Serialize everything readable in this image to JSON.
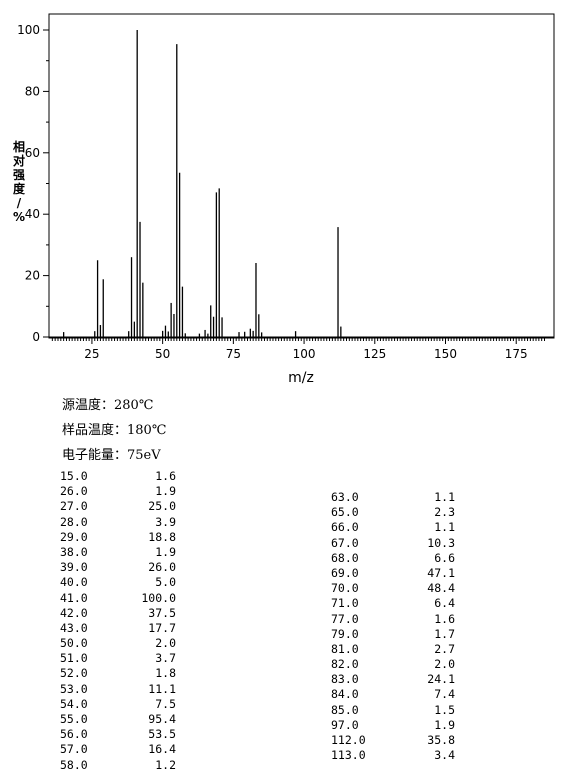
{
  "chart_data": {
    "type": "bar",
    "xlabel": "m/z",
    "ylabel": "相对强度/%",
    "xlim": [
      8,
      187
    ],
    "ylim": [
      0,
      105
    ],
    "x_ticks": [
      25,
      50,
      75,
      100,
      125,
      150,
      175
    ],
    "y_ticks": [
      0,
      20,
      40,
      60,
      80,
      100
    ],
    "x_tick_labels": [
      "25",
      "50",
      "75",
      "100",
      "125",
      "150",
      "175"
    ],
    "y_tick_labels": [
      "0",
      "20",
      "40",
      "60",
      "80",
      "100"
    ],
    "grid": false,
    "peaks": [
      {
        "x": 15.0,
        "y": 1.6
      },
      {
        "x": 26.0,
        "y": 1.9
      },
      {
        "x": 27.0,
        "y": 25.0
      },
      {
        "x": 28.0,
        "y": 3.9
      },
      {
        "x": 29.0,
        "y": 18.8
      },
      {
        "x": 38.0,
        "y": 1.9
      },
      {
        "x": 39.0,
        "y": 26.0
      },
      {
        "x": 40.0,
        "y": 5.0
      },
      {
        "x": 41.0,
        "y": 100.0
      },
      {
        "x": 42.0,
        "y": 37.5
      },
      {
        "x": 43.0,
        "y": 17.7
      },
      {
        "x": 50.0,
        "y": 2.0
      },
      {
        "x": 51.0,
        "y": 3.7
      },
      {
        "x": 52.0,
        "y": 1.8
      },
      {
        "x": 53.0,
        "y": 11.1
      },
      {
        "x": 54.0,
        "y": 7.5
      },
      {
        "x": 55.0,
        "y": 95.4
      },
      {
        "x": 56.0,
        "y": 53.5
      },
      {
        "x": 57.0,
        "y": 16.4
      },
      {
        "x": 58.0,
        "y": 1.2
      },
      {
        "x": 63.0,
        "y": 1.1
      },
      {
        "x": 65.0,
        "y": 2.3
      },
      {
        "x": 66.0,
        "y": 1.1
      },
      {
        "x": 67.0,
        "y": 10.3
      },
      {
        "x": 68.0,
        "y": 6.6
      },
      {
        "x": 69.0,
        "y": 47.1
      },
      {
        "x": 70.0,
        "y": 48.4
      },
      {
        "x": 71.0,
        "y": 6.4
      },
      {
        "x": 77.0,
        "y": 1.6
      },
      {
        "x": 79.0,
        "y": 1.7
      },
      {
        "x": 81.0,
        "y": 2.7
      },
      {
        "x": 82.0,
        "y": 2.0
      },
      {
        "x": 83.0,
        "y": 24.1
      },
      {
        "x": 84.0,
        "y": 7.4
      },
      {
        "x": 85.0,
        "y": 1.5
      },
      {
        "x": 97.0,
        "y": 1.9
      },
      {
        "x": 112.0,
        "y": 35.8
      },
      {
        "x": 113.0,
        "y": 3.4
      }
    ]
  },
  "conditions": [
    {
      "label": "源温度：",
      "value": "280℃"
    },
    {
      "label": "样品温度：",
      "value": "180℃"
    },
    {
      "label": "电子能量：",
      "value": "75eV"
    }
  ],
  "peak_table": {
    "column1": [
      {
        "mz": "15.0",
        "abundance": "1.6"
      },
      {
        "mz": "26.0",
        "abundance": "1.9"
      },
      {
        "mz": "27.0",
        "abundance": "25.0"
      },
      {
        "mz": "28.0",
        "abundance": "3.9"
      },
      {
        "mz": "29.0",
        "abundance": "18.8"
      },
      {
        "mz": "38.0",
        "abundance": "1.9"
      },
      {
        "mz": "39.0",
        "abundance": "26.0"
      },
      {
        "mz": "40.0",
        "abundance": "5.0"
      },
      {
        "mz": "41.0",
        "abundance": "100.0"
      },
      {
        "mz": "42.0",
        "abundance": "37.5"
      },
      {
        "mz": "43.0",
        "abundance": "17.7"
      },
      {
        "mz": "50.0",
        "abundance": "2.0"
      },
      {
        "mz": "51.0",
        "abundance": "3.7"
      },
      {
        "mz": "52.0",
        "abundance": "1.8"
      },
      {
        "mz": "53.0",
        "abundance": "11.1"
      },
      {
        "mz": "54.0",
        "abundance": "7.5"
      },
      {
        "mz": "55.0",
        "abundance": "95.4"
      },
      {
        "mz": "56.0",
        "abundance": "53.5"
      },
      {
        "mz": "57.0",
        "abundance": "16.4"
      },
      {
        "mz": "58.0",
        "abundance": "1.2"
      }
    ],
    "column2": [
      {
        "mz": "63.0",
        "abundance": "1.1"
      },
      {
        "mz": "65.0",
        "abundance": "2.3"
      },
      {
        "mz": "66.0",
        "abundance": "1.1"
      },
      {
        "mz": "67.0",
        "abundance": "10.3"
      },
      {
        "mz": "68.0",
        "abundance": "6.6"
      },
      {
        "mz": "69.0",
        "abundance": "47.1"
      },
      {
        "mz": "70.0",
        "abundance": "48.4"
      },
      {
        "mz": "71.0",
        "abundance": "6.4"
      },
      {
        "mz": "77.0",
        "abundance": "1.6"
      },
      {
        "mz": "79.0",
        "abundance": "1.7"
      },
      {
        "mz": "81.0",
        "abundance": "2.7"
      },
      {
        "mz": "82.0",
        "abundance": "2.0"
      },
      {
        "mz": "83.0",
        "abundance": "24.1"
      },
      {
        "mz": "84.0",
        "abundance": "7.4"
      },
      {
        "mz": "85.0",
        "abundance": "1.5"
      },
      {
        "mz": "97.0",
        "abundance": "1.9"
      },
      {
        "mz": "112.0",
        "abundance": "35.8"
      },
      {
        "mz": "113.0",
        "abundance": "3.4"
      }
    ]
  }
}
